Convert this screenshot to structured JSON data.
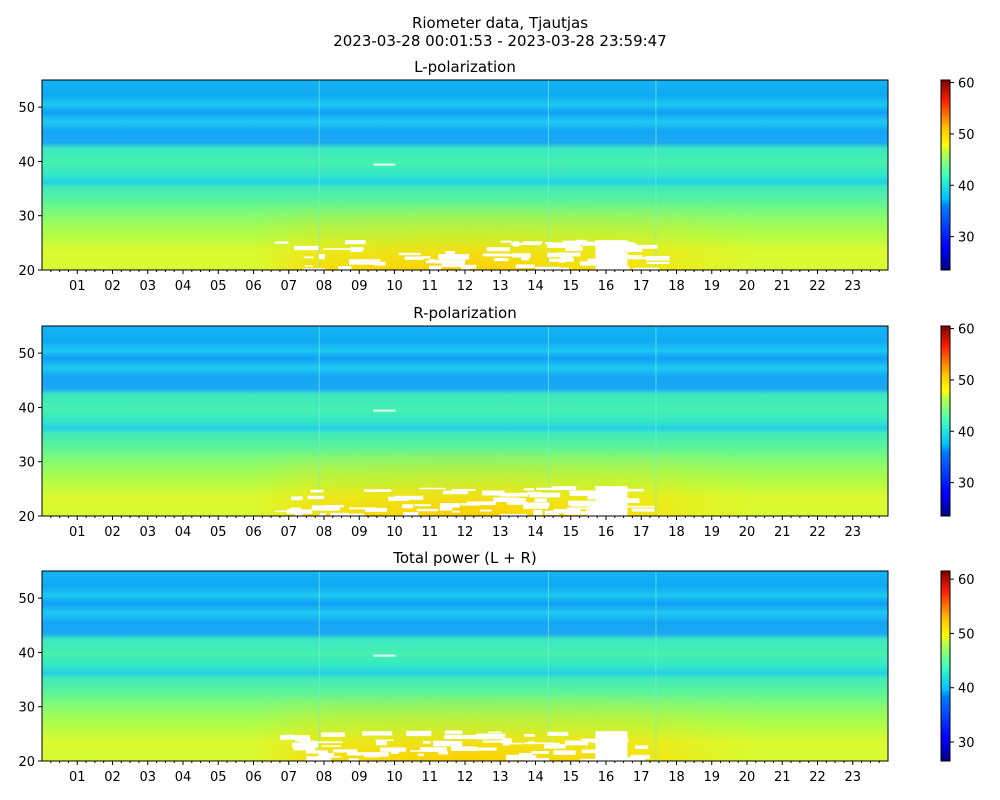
{
  "figure": {
    "title_line1": "Riometer data, Tjautjas",
    "title_line2": "2023-03-28 00:01:53 - 2023-03-28 23:59:47"
  },
  "chart_data": [
    {
      "type": "heatmap",
      "title": "L-polarization",
      "x_ticks": [
        "01",
        "02",
        "03",
        "04",
        "05",
        "06",
        "07",
        "08",
        "09",
        "10",
        "11",
        "12",
        "13",
        "14",
        "15",
        "16",
        "17",
        "18",
        "19",
        "20",
        "21",
        "22",
        "23"
      ],
      "x_range_hours": [
        0,
        24
      ],
      "y_ticks": [
        20,
        30,
        40,
        50
      ],
      "ylim": [
        20,
        55
      ],
      "colorbar": {
        "ticks": [
          30,
          40,
          50,
          60
        ],
        "range": [
          23.5,
          60.5
        ],
        "colormap": "jet"
      },
      "features": {
        "white_saturation_hours": [
          6.6,
          17.2
        ],
        "white_saturation_y": [
          20,
          26
        ]
      }
    },
    {
      "type": "heatmap",
      "title": "R-polarization",
      "x_ticks": [
        "01",
        "02",
        "03",
        "04",
        "05",
        "06",
        "07",
        "08",
        "09",
        "10",
        "11",
        "12",
        "13",
        "14",
        "15",
        "16",
        "17",
        "18",
        "19",
        "20",
        "21",
        "22",
        "23"
      ],
      "x_range_hours": [
        0,
        24
      ],
      "y_ticks": [
        20,
        30,
        40,
        50
      ],
      "ylim": [
        20,
        55
      ],
      "colorbar": {
        "ticks": [
          30,
          40,
          50,
          60
        ],
        "range": [
          23.5,
          60.5
        ],
        "colormap": "jet"
      },
      "features": {
        "white_saturation_hours": [
          6.6,
          16.8
        ],
        "white_saturation_y": [
          20,
          26
        ]
      }
    },
    {
      "type": "heatmap",
      "title": "Total power (L + R)",
      "x_ticks": [
        "01",
        "02",
        "03",
        "04",
        "05",
        "06",
        "07",
        "08",
        "09",
        "10",
        "11",
        "12",
        "13",
        "14",
        "15",
        "16",
        "17",
        "18",
        "19",
        "20",
        "21",
        "22",
        "23"
      ],
      "x_range_hours": [
        0,
        24
      ],
      "y_ticks": [
        20,
        30,
        40,
        50
      ],
      "ylim": [
        20,
        55
      ],
      "colorbar": {
        "ticks": [
          30,
          40,
          50,
          60
        ],
        "range": [
          26.5,
          61.5
        ],
        "colormap": "jet"
      },
      "features": {
        "white_saturation_hours": [
          6.6,
          17.0
        ],
        "white_saturation_y": [
          20,
          26
        ]
      }
    }
  ]
}
